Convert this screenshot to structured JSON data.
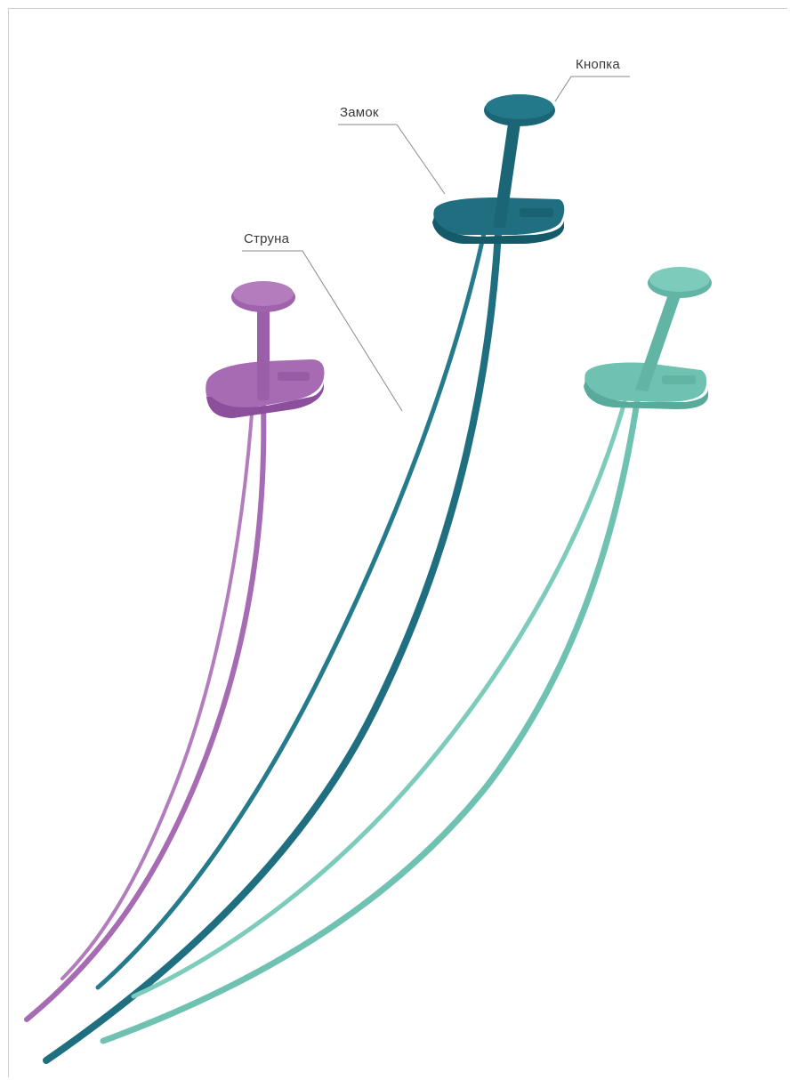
{
  "labels": {
    "button": "Кнопка",
    "lock": "Замок",
    "string": "Струна"
  },
  "colors": {
    "purple": "#a66bb3",
    "purple_dark": "#8c4f9b",
    "teal_dark": "#1f6f80",
    "teal_dark_shade": "#155a69",
    "mint": "#6fc2b1",
    "mint_dark": "#58ab9a",
    "leader_line": "#8a8a8a"
  },
  "icons": {
    "seal_purple": "plastic-seal-icon",
    "seal_teal": "plastic-seal-icon",
    "seal_mint": "plastic-seal-icon"
  }
}
